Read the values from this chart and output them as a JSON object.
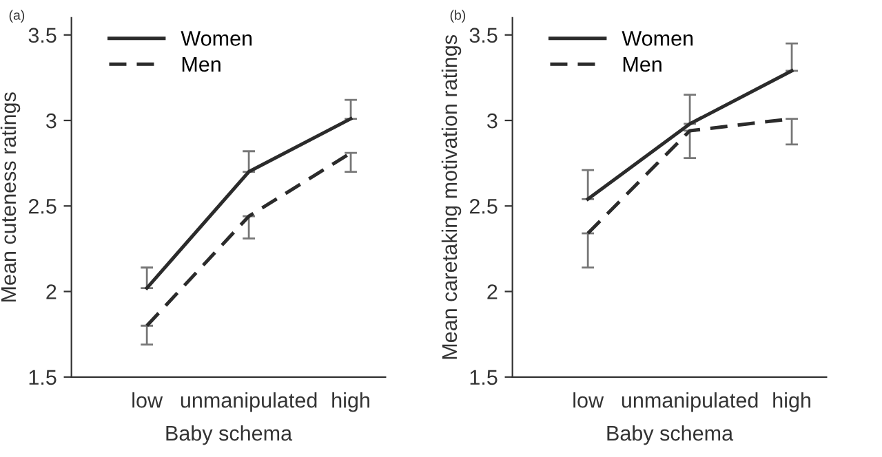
{
  "chart_data": [
    {
      "type": "line",
      "title": "(a)",
      "xlabel": "Baby schema",
      "ylabel": "Mean cuteness ratings",
      "categories": [
        "low",
        "unmanipulated",
        "high"
      ],
      "ylim": [
        1.5,
        3.6
      ],
      "yticks": [
        1.5,
        2,
        2.5,
        3,
        3.5
      ],
      "grid": false,
      "legend": "top left",
      "marker": "none",
      "series": [
        {
          "name": "Women",
          "color": "#2b2b2b",
          "line_style": "solid",
          "values": [
            2.02,
            2.7,
            3.01
          ],
          "errors": [
            [
              2.02,
              2.14
            ],
            [
              2.7,
              2.82
            ],
            [
              3.01,
              3.12
            ]
          ]
        },
        {
          "name": "Men",
          "color": "#2b2b2b",
          "line_style": "dashed",
          "values": [
            1.8,
            2.44,
            2.81
          ],
          "errors": [
            [
              1.69,
              1.8
            ],
            [
              2.31,
              2.44
            ],
            [
              2.7,
              2.81
            ]
          ]
        }
      ]
    },
    {
      "type": "line",
      "title": "(b)",
      "xlabel": "Baby schema",
      "ylabel": "Mean caretaking motivation ratings",
      "categories": [
        "low",
        "unmanipulated",
        "high"
      ],
      "ylim": [
        1.5,
        3.6
      ],
      "yticks": [
        1.5,
        2,
        2.5,
        3,
        3.5
      ],
      "grid": false,
      "legend": "top left",
      "marker": "none",
      "series": [
        {
          "name": "Women",
          "color": "#2b2b2b",
          "line_style": "solid",
          "values": [
            2.54,
            2.98,
            3.29
          ],
          "errors": [
            [
              2.54,
              2.71
            ],
            [
              2.98,
              3.15
            ],
            [
              3.29,
              3.45
            ]
          ]
        },
        {
          "name": "Men",
          "color": "#2b2b2b",
          "line_style": "dashed",
          "values": [
            2.34,
            2.94,
            3.01
          ],
          "errors": [
            [
              2.14,
              2.34
            ],
            [
              2.78,
              2.94
            ],
            [
              2.86,
              3.01
            ]
          ]
        }
      ]
    }
  ]
}
